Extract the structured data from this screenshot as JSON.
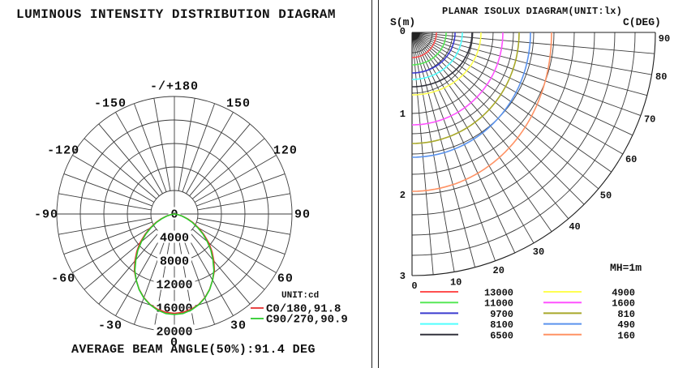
{
  "left_panel": {
    "title": "LUMINOUS INTENSITY DISTRIBUTION DIAGRAM",
    "unit_label": "UNIT:cd",
    "caption": "AVERAGE BEAM ANGLE(50%):91.4 DEG"
  },
  "right_panel": {
    "title": "PLANAR ISOLUX DIAGRAM(UNIT:lx)",
    "s_axis_label": "S(m)",
    "s_origin_label": "0",
    "c_axis_label": "C(DEG)",
    "mh_label": "MH=1m"
  },
  "chart_data": [
    {
      "type": "line",
      "variant": "polar_intensity_distribution",
      "title": "LUMINOUS INTENSITY DISTRIBUTION DIAGRAM",
      "unit": "cd",
      "average_beam_angle_50_pct_deg": 91.4,
      "r_axis": {
        "min": 0,
        "max": 20000,
        "step": 4000,
        "tick_labels": [
          "0",
          "4000",
          "8000",
          "12000",
          "16000",
          "20000"
        ]
      },
      "angle_grid_step_deg": 10,
      "angle_labels": [
        {
          "angle": 0,
          "label": "0"
        },
        {
          "angle": 30,
          "label": "30"
        },
        {
          "angle": 60,
          "label": "60"
        },
        {
          "angle": 90,
          "label": "90"
        },
        {
          "angle": 120,
          "label": "120"
        },
        {
          "angle": 150,
          "label": "150"
        },
        {
          "angle": 180,
          "label": "-/+180"
        },
        {
          "angle": -150,
          "label": "-150"
        },
        {
          "angle": -120,
          "label": "-120"
        },
        {
          "angle": -90,
          "label": "-90"
        },
        {
          "angle": -60,
          "label": "-60"
        },
        {
          "angle": -30,
          "label": "-30"
        }
      ],
      "gamma_deg": [
        0,
        5,
        10,
        15,
        20,
        25,
        30,
        35,
        40,
        45,
        50,
        55,
        60,
        65,
        70,
        75,
        80,
        85,
        90
      ],
      "series": [
        {
          "name": "C0/180,91.8",
          "beam_angle_deg": 91.8,
          "color": "#e63232",
          "intensity_cd": [
            16900,
            16800,
            16450,
            15950,
            15150,
            14150,
            13000,
            11850,
            10450,
            9050,
            7650,
            6150,
            4800,
            3500,
            2380,
            1430,
            680,
            210,
            0
          ]
        },
        {
          "name": "C90/270,90.9",
          "beam_angle_deg": 90.9,
          "color": "#2ccc2c",
          "intensity_cd": [
            17100,
            17000,
            16600,
            16000,
            15200,
            14200,
            13000,
            11700,
            10200,
            8800,
            7300,
            5900,
            4500,
            3300,
            2200,
            1300,
            600,
            160,
            0
          ]
        }
      ]
    },
    {
      "type": "line",
      "variant": "planar_isolux",
      "title": "PLANAR ISOLUX DIAGRAM(UNIT:lx)",
      "unit": "lx",
      "mounting_height_m": 1,
      "s_axis": {
        "min": 0,
        "max": 3,
        "grid_step": 0.25,
        "tick_labels": [
          "0",
          "1",
          "2",
          "3"
        ]
      },
      "c_axis": {
        "min": 0,
        "max": 90,
        "grid_step": 5,
        "tick_labels": [
          "0",
          "10",
          "20",
          "30",
          "40",
          "50",
          "60",
          "70",
          "80",
          "90"
        ]
      },
      "contours": [
        {
          "level_lx": 13000,
          "color": "#ff5050",
          "radius_m_at_c0": 0.31,
          "radius_m_at_c90": 0.3
        },
        {
          "level_lx": 11000,
          "color": "#57e857",
          "radius_m_at_c0": 0.4,
          "radius_m_at_c90": 0.42
        },
        {
          "level_lx": 9700,
          "color": "#3b3bcf",
          "radius_m_at_c0": 0.5,
          "radius_m_at_c90": 0.53
        },
        {
          "level_lx": 8100,
          "color": "#52ffff",
          "radius_m_at_c0": 0.58,
          "radius_m_at_c90": 0.62
        },
        {
          "level_lx": 6500,
          "color": "#32323c",
          "radius_m_at_c0": 0.67,
          "radius_m_at_c90": 0.74
        },
        {
          "level_lx": 4900,
          "color": "#ffff52",
          "radius_m_at_c0": 0.77,
          "radius_m_at_c90": 0.85
        },
        {
          "level_lx": 1600,
          "color": "#ff52ff",
          "radius_m_at_c0": 1.14,
          "radius_m_at_c90": 1.12
        },
        {
          "level_lx": 810,
          "color": "#a8a82a",
          "radius_m_at_c0": 1.37,
          "radius_m_at_c90": 1.32
        },
        {
          "level_lx": 490,
          "color": "#5a93ee",
          "radius_m_at_c0": 1.54,
          "radius_m_at_c90": 1.46
        },
        {
          "level_lx": 160,
          "color": "#ff9264",
          "radius_m_at_c0": 1.96,
          "radius_m_at_c90": 1.72
        }
      ]
    }
  ]
}
